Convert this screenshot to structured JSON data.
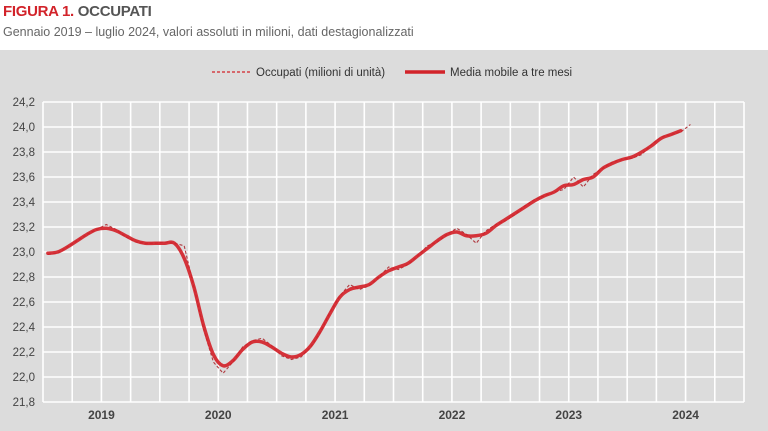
{
  "header": {
    "figure_label": "FIGURA 1.",
    "title": "OCCUPATI",
    "subtitle": "Gennaio 2019 – luglio 2024, valori assoluti in milioni, dati destagionalizzati"
  },
  "chart_data": {
    "type": "line",
    "title": "OCCUPATI",
    "xlabel": "",
    "ylabel": "",
    "ylim": [
      21.8,
      24.2
    ],
    "yticks": [
      "21,8",
      "22,0",
      "22,2",
      "22,4",
      "22,6",
      "22,8",
      "23,0",
      "23,2",
      "23,4",
      "23,6",
      "23,8",
      "24,0",
      "24,2"
    ],
    "xlim": [
      "2019-01",
      "2024-12"
    ],
    "xticks": [
      "2019",
      "2020",
      "2021",
      "2022",
      "2023",
      "2024"
    ],
    "grid": true,
    "legend": "top",
    "colors": {
      "series": "#d2232a",
      "grid": "#ffffff",
      "background": "#dcdcdc"
    },
    "x_start": "2019-01",
    "x_step": "month",
    "series": [
      {
        "name": "Occupati (milioni di unità)",
        "style": "dashed",
        "values": [
          22.98,
          22.99,
          23.04,
          23.09,
          23.14,
          23.18,
          23.22,
          23.18,
          23.12,
          23.08,
          23.07,
          23.07,
          23.08,
          23.07,
          23.05,
          22.72,
          22.38,
          22.12,
          22.03,
          22.12,
          22.24,
          22.29,
          22.31,
          22.25,
          22.17,
          22.14,
          22.16,
          22.24,
          22.36,
          22.52,
          22.65,
          22.74,
          22.7,
          22.73,
          22.8,
          22.88,
          22.86,
          22.9,
          22.97,
          23.05,
          23.08,
          23.14,
          23.19,
          23.14,
          23.07,
          23.17,
          23.22,
          23.25,
          23.3,
          23.37,
          23.42,
          23.45,
          23.48,
          23.5,
          23.6,
          23.52,
          23.62,
          23.67,
          23.72,
          23.74,
          23.75,
          23.78,
          23.86,
          23.92,
          23.94,
          23.96,
          24.02
        ]
      },
      {
        "name": "Media mobile a tre mesi",
        "style": "solid",
        "values": [
          22.99,
          23.0,
          23.04,
          23.09,
          23.14,
          23.18,
          23.19,
          23.17,
          23.13,
          23.09,
          23.07,
          23.07,
          23.07,
          23.07,
          22.95,
          22.72,
          22.41,
          22.18,
          22.09,
          22.13,
          22.22,
          22.28,
          22.28,
          22.24,
          22.19,
          22.16,
          22.18,
          22.25,
          22.37,
          22.51,
          22.64,
          22.7,
          22.72,
          22.74,
          22.8,
          22.85,
          22.88,
          22.91,
          22.97,
          23.03,
          23.09,
          23.14,
          23.16,
          23.13,
          23.13,
          23.15,
          23.21,
          23.26,
          23.31,
          23.36,
          23.41,
          23.45,
          23.48,
          23.53,
          23.54,
          23.58,
          23.6,
          23.67,
          23.71,
          23.74,
          23.76,
          23.8,
          23.85,
          23.91,
          23.94,
          23.97
        ]
      }
    ]
  }
}
